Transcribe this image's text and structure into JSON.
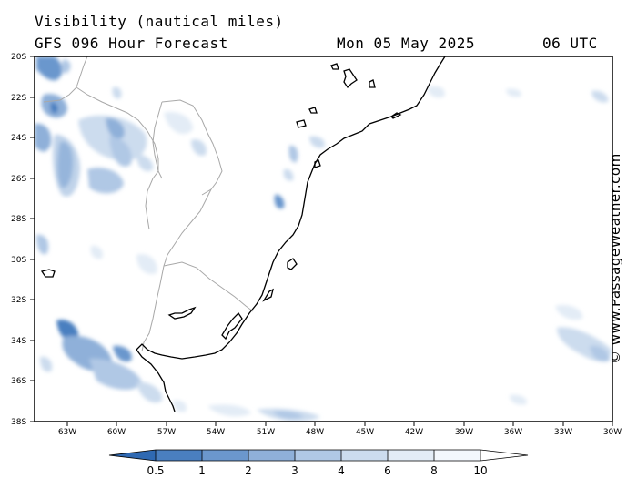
{
  "header": {
    "title": "Visibility (nautical miles)",
    "model": "GFS 096 Hour Forecast",
    "date": "Mon 05 May 2025",
    "time": "06 UTC"
  },
  "watermark": "© www.PassageWeather.com",
  "map": {
    "lat_range": [
      -38,
      -20
    ],
    "lon_range": [
      -65,
      -30
    ],
    "lat_labels": [
      "20S",
      "22S",
      "24S",
      "26S",
      "28S",
      "30S",
      "32S",
      "34S",
      "36S",
      "38S"
    ],
    "lon_labels": [
      "63W",
      "60W",
      "57W",
      "54W",
      "51W",
      "48W",
      "45W",
      "42W",
      "39W",
      "36W",
      "33W",
      "30W"
    ]
  },
  "colorbar": {
    "labels": [
      "0.5",
      "1",
      "2",
      "3",
      "4",
      "6",
      "8",
      "10"
    ],
    "colors": [
      "#2f69b2",
      "#4a7fc0",
      "#6b97cd",
      "#8fb0d9",
      "#b0c8e5",
      "#ccdcee",
      "#e3ecf6",
      "#f3f7fc",
      "#ffffff"
    ]
  }
}
